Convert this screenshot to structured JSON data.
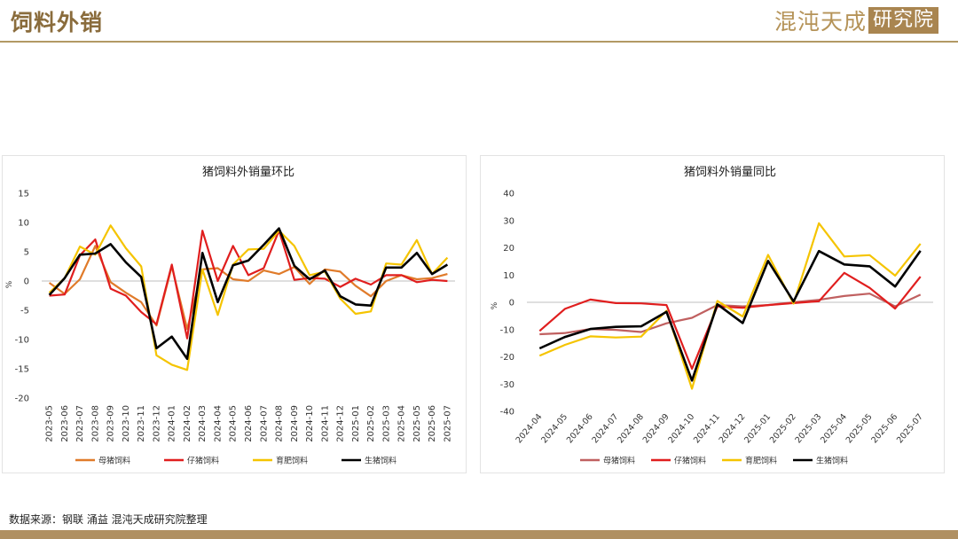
{
  "header": {
    "title": "饲料外销",
    "brand_name": "混沌天成",
    "brand_box": "研究院"
  },
  "footer": {
    "source": "数据来源：钢联 涌益 混沌天成研究院整理"
  },
  "colors": {
    "sow": "#e07b2a",
    "piglet": "#e01e1e",
    "fattening": "#f5c400",
    "live": "#000000",
    "sow_yoy": "#c06060",
    "brand": "#a98550"
  },
  "chart_data": [
    {
      "type": "line",
      "title": "猪饲料外销量环比",
      "ylabel": "%",
      "ylim": [
        -20,
        15
      ],
      "yticks": [
        -20,
        -15,
        -10,
        -5,
        0,
        5,
        10,
        15
      ],
      "categories": [
        "2023-05",
        "2023-06",
        "2023-07",
        "2023-08",
        "2023-09",
        "2023-10",
        "2023-11",
        "2023-12",
        "2024-01",
        "2024-02",
        "2024-03",
        "2024-04",
        "2024-05",
        "2024-06",
        "2024-07",
        "2024-08",
        "2024-09",
        "2024-10",
        "2024-11",
        "2024-12",
        "2025-01",
        "2025-02",
        "2025-03",
        "2025-04",
        "2025-05",
        "2025-06",
        "2025-07"
      ],
      "legend": "bottom",
      "series": [
        {
          "name": "母猪饲料",
          "color_key": "sow",
          "values": [
            -0.3,
            -2.2,
            0.3,
            6.0,
            -0.2,
            -2.0,
            -3.6,
            -7.6,
            2.5,
            -8.2,
            2.0,
            2.2,
            0.3,
            0.0,
            1.8,
            1.2,
            2.4,
            -0.5,
            2.0,
            1.6,
            -0.8,
            -2.6,
            0.0,
            1.0,
            0.3,
            0.5,
            1.2
          ]
        },
        {
          "name": "仔猪饲料",
          "color_key": "piglet",
          "values": [
            -2.5,
            -2.3,
            4.4,
            7.1,
            -1.3,
            -2.5,
            -5.3,
            -7.4,
            2.8,
            -9.8,
            8.6,
            0.0,
            6.0,
            1.0,
            2.2,
            8.6,
            0.2,
            0.5,
            0.4,
            -1.0,
            0.4,
            -0.6,
            1.0,
            1.0,
            -0.2,
            0.2,
            0.0
          ]
        },
        {
          "name": "育肥饲料",
          "color_key": "fattening",
          "values": [
            -2.0,
            0.5,
            5.9,
            4.5,
            9.5,
            5.6,
            2.5,
            -12.7,
            -14.3,
            -15.2,
            2.0,
            -5.8,
            2.8,
            5.4,
            5.5,
            8.6,
            6.0,
            1.0,
            1.6,
            -3.0,
            -5.6,
            -5.2,
            3.0,
            2.8,
            7.0,
            1.2,
            4.0
          ]
        },
        {
          "name": "生猪饲料",
          "color_key": "live",
          "values": [
            -2.4,
            0.5,
            4.5,
            4.7,
            6.3,
            3.2,
            0.7,
            -11.5,
            -9.5,
            -13.3,
            4.8,
            -3.6,
            2.7,
            3.5,
            6.2,
            9.0,
            2.6,
            0.3,
            1.8,
            -2.6,
            -4.0,
            -4.2,
            2.3,
            2.3,
            4.8,
            1.2,
            2.8
          ]
        }
      ]
    },
    {
      "type": "line",
      "title": "猪饲料外销量同比",
      "ylabel": "%",
      "ylim": [
        -40,
        40
      ],
      "yticks": [
        -40,
        -30,
        -20,
        -10,
        0,
        10,
        20,
        30,
        40
      ],
      "categories": [
        "2024-04",
        "2024-05",
        "2024-06",
        "2024-07",
        "2024-08",
        "2024-09",
        "2024-10",
        "2024-11",
        "2024-12",
        "2025-01",
        "2025-02",
        "2025-03",
        "2025-04",
        "2025-05",
        "2025-06",
        "2025-07"
      ],
      "legend": "bottom",
      "series": [
        {
          "name": "母猪饲料",
          "color_key": "sow_yoy",
          "values": [
            -11.7,
            -11.3,
            -9.8,
            -10.1,
            -10.9,
            -7.7,
            -5.7,
            -1.0,
            -1.5,
            -1.0,
            0.0,
            0.9,
            2.3,
            3.2,
            -1.5,
            2.8
          ]
        },
        {
          "name": "仔猪饲料",
          "color_key": "piglet",
          "values": [
            -10.5,
            -2.4,
            1.0,
            -0.3,
            -0.4,
            -1.0,
            -24.4,
            -1.5,
            -2.0,
            -1.0,
            -0.3,
            0.4,
            10.8,
            5.3,
            -2.3,
            9.4
          ]
        },
        {
          "name": "育肥饲料",
          "color_key": "fattening",
          "values": [
            -19.6,
            -15.6,
            -12.5,
            -12.9,
            -12.6,
            -3.1,
            -31.7,
            0.5,
            -5.2,
            17.4,
            -0.5,
            29.0,
            16.8,
            17.3,
            9.8,
            21.5
          ]
        },
        {
          "name": "生猪饲料",
          "color_key": "live",
          "values": [
            -16.9,
            -12.7,
            -9.8,
            -9.0,
            -8.8,
            -3.5,
            -28.7,
            -0.7,
            -7.6,
            15.2,
            0.3,
            18.8,
            13.9,
            13.2,
            5.8,
            18.9
          ]
        }
      ]
    }
  ]
}
